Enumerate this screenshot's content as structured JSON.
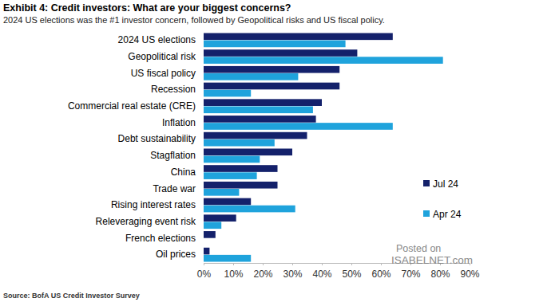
{
  "chart_data": {
    "type": "bar",
    "orientation": "horizontal",
    "title": "Exhibit 4: Credit investors: What are your biggest concerns?",
    "subtitle": "2024 US elections was the #1 investor concern, followed by Geopolitical risks and US fiscal policy.",
    "source": "Source: BofA US Credit Investor Survey",
    "annotations": [
      "Posted on",
      "ISABELNET.com"
    ],
    "categories": [
      "2024 US elections",
      "Geopolitical risk",
      "US fiscal policy",
      "Recession",
      "Commercial real estate (CRE)",
      "Inflation",
      "Debt sustainability",
      "Stagflation",
      "China",
      "Trade war",
      "Rising interest rates",
      "Releveraging event risk",
      "French elections",
      "Oil prices"
    ],
    "series": [
      {
        "name": "Jul 24",
        "color": "#14216b",
        "values": [
          64,
          52,
          46,
          46,
          40,
          38,
          35,
          30,
          25,
          25,
          16,
          11,
          4,
          2
        ]
      },
      {
        "name": "Apr 24",
        "color": "#1fa3dc",
        "values": [
          48,
          81,
          32,
          16,
          37,
          64,
          24,
          19,
          18,
          12,
          31,
          6,
          null,
          16
        ]
      }
    ],
    "xlim": [
      0,
      90
    ],
    "xticks": [
      {
        "value": 0,
        "label": "0%"
      },
      {
        "value": 10,
        "label": "10%"
      },
      {
        "value": 20,
        "label": "20%"
      },
      {
        "value": 30,
        "label": "30%"
      },
      {
        "value": 40,
        "label": "40%"
      },
      {
        "value": 50,
        "label": "50%"
      },
      {
        "value": 60,
        "label": "60%"
      },
      {
        "value": 70,
        "label": "70%"
      },
      {
        "value": 80,
        "label": "80%"
      },
      {
        "value": 90,
        "label": "90%"
      }
    ],
    "grid": false,
    "legend": "right"
  }
}
